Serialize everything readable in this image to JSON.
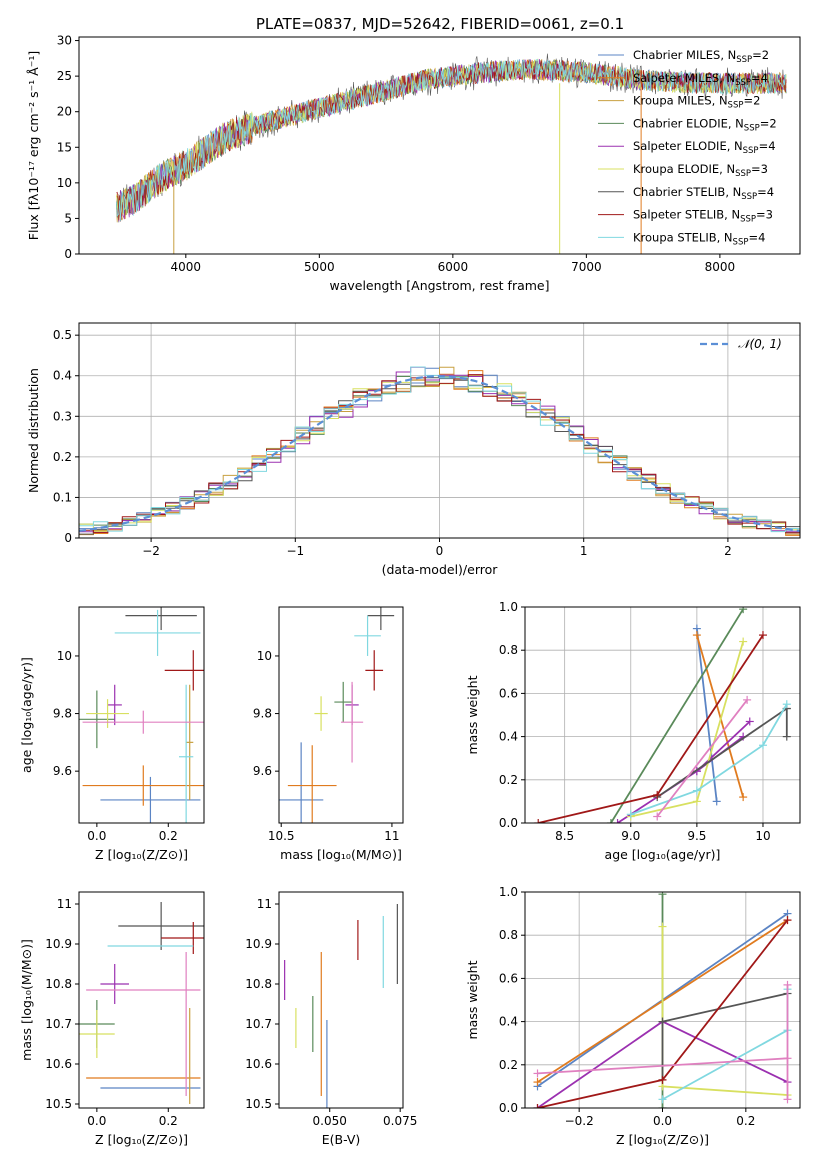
{
  "figure": {
    "title": "PLATE=0837, MJD=52642, FIBERID=0061, z=0.1"
  },
  "models": [
    {
      "name": "Chabrier MILES, N",
      "sub": "SSP",
      "tail": "=2",
      "color": "#5b84c4"
    },
    {
      "name": "Salpeter MILES, N",
      "sub": "SSP",
      "tail": "=4",
      "color": "#e07b1f"
    },
    {
      "name": "Kroupa MILES, N",
      "sub": "SSP",
      "tail": "=2",
      "color": "#c8a040"
    },
    {
      "name": "Chabrier ELODIE, N",
      "sub": "SSP",
      "tail": "=2",
      "color": "#5a8a5a"
    },
    {
      "name": "Salpeter ELODIE, N",
      "sub": "SSP",
      "tail": "=4",
      "color": "#9b30b0"
    },
    {
      "name": "Kroupa ELODIE, N",
      "sub": "SSP",
      "tail": "=3",
      "color": "#d8e060"
    },
    {
      "name": "Chabrier STELIB, N",
      "sub": "SSP",
      "tail": "=4",
      "color": "#555555"
    },
    {
      "name": "Salpeter STELIB, N",
      "sub": "SSP",
      "tail": "=3",
      "color": "#a01818"
    },
    {
      "name": "Kroupa STELIB, N",
      "sub": "SSP",
      "tail": "=4",
      "color": "#80d8e0"
    }
  ],
  "chart_data": [
    {
      "id": "spectrum",
      "type": "line",
      "xlabel": "wavelength [Angstrom, rest frame]",
      "ylabel": "Flux [fλ10⁻¹⁷ erg cm⁻² s⁻¹ Å⁻¹]",
      "xlim": [
        3200,
        8600
      ],
      "ylim": [
        0,
        30.5
      ],
      "xticks": [
        4000,
        5000,
        6000,
        7000,
        8000
      ],
      "yticks": [
        0,
        5,
        10,
        15,
        20,
        25,
        30
      ],
      "grid": false,
      "legend": "right",
      "continuum": {
        "x": [
          3480,
          3600,
          3800,
          4000,
          4300,
          4600,
          5000,
          5400,
          5800,
          6200,
          6600,
          7000,
          7400,
          7800,
          8200,
          8500
        ],
        "y": [
          6.5,
          7.5,
          10.5,
          12.5,
          16.5,
          18.5,
          20.5,
          22.5,
          24.5,
          25.5,
          26.0,
          25.5,
          24.5,
          24.0,
          24.0,
          24.0
        ]
      }
    },
    {
      "id": "residuals",
      "type": "step",
      "xlabel": "(data-model)/error",
      "ylabel": "Normed distribution",
      "xlim": [
        -2.5,
        2.5
      ],
      "ylim": [
        0,
        0.53
      ],
      "xticks": [
        -2,
        -1,
        0,
        1,
        2
      ],
      "yticks": [
        0.0,
        0.1,
        0.2,
        0.3,
        0.4,
        0.5
      ],
      "grid": true,
      "legend": "top-right",
      "reference": {
        "name": "𝒩(0, 1)",
        "type": "gaussian",
        "mean": 0,
        "sigma": 1,
        "color": "#5b8fd6"
      }
    },
    {
      "id": "age-vs-Z",
      "type": "errorbar",
      "xlabel": "Z [log₁₀(Z/Z⊙)]",
      "ylabel": "age  [log₁₀(age/yr)]",
      "xlim": [
        -0.05,
        0.3
      ],
      "ylim": [
        9.42,
        10.17
      ],
      "xticks": [
        0.0,
        0.2
      ],
      "yticks": [
        9.6,
        9.8,
        10.0
      ],
      "grid": false,
      "points": [
        {
          "x": 0.15,
          "y": 9.5,
          "xerr": 0.14,
          "yerr": 0.08,
          "c": 0
        },
        {
          "x": 0.13,
          "y": 9.55,
          "xerr": 0.17,
          "yerr": 0.07,
          "c": 1
        },
        {
          "x": 0.26,
          "y": 9.7,
          "xerr": 0.01,
          "yerr": 0.2,
          "c": 2
        },
        {
          "x": 0.0,
          "y": 9.78,
          "xerr": 0.05,
          "yerr": 0.1,
          "c": 3
        },
        {
          "x": 0.05,
          "y": 9.83,
          "xerr": 0.02,
          "yerr": 0.07,
          "c": 4
        },
        {
          "x": 0.03,
          "y": 9.8,
          "xerr": 0.06,
          "yerr": 0.05,
          "c": 5
        },
        {
          "x": 0.18,
          "y": 10.14,
          "xerr": 0.1,
          "yerr": 0.05,
          "c": 6
        },
        {
          "x": 0.27,
          "y": 9.95,
          "xerr": 0.08,
          "yerr": 0.07,
          "c": 7
        },
        {
          "x": 0.17,
          "y": 10.08,
          "xerr": 0.12,
          "yerr": 0.08,
          "c": 8
        },
        {
          "x": 0.25,
          "y": 9.65,
          "xerr": 0.02,
          "yerr": 0.25,
          "c": 8
        },
        {
          "x": 0.13,
          "y": 9.77,
          "xerr": 0.17,
          "yerr": 0.04,
          "c": 0,
          "pink": true
        }
      ]
    },
    {
      "id": "age-vs-mass",
      "type": "errorbar",
      "xlabel": "mass [log₁₀(M/M⊙)]",
      "ylabel": "",
      "xlim": [
        10.49,
        11.05
      ],
      "ylim": [
        9.42,
        10.17
      ],
      "xticks": [
        10.5,
        11.0
      ],
      "yticks": [
        9.6,
        9.8,
        10.0
      ],
      "grid": false,
      "points": [
        {
          "x": 10.59,
          "y": 9.5,
          "xerr": 0.1,
          "yerr": 0.2,
          "c": 0
        },
        {
          "x": 10.64,
          "y": 9.55,
          "xerr": 0.11,
          "yerr": 0.14,
          "c": 1
        },
        {
          "x": 10.68,
          "y": 9.8,
          "xerr": 0.03,
          "yerr": 0.06,
          "c": 5
        },
        {
          "x": 10.78,
          "y": 9.84,
          "xerr": 0.04,
          "yerr": 0.07,
          "c": 3
        },
        {
          "x": 10.82,
          "y": 9.83,
          "xerr": 0.03,
          "yerr": 0.07,
          "c": 4
        },
        {
          "x": 10.82,
          "y": 9.77,
          "xerr": 0.05,
          "yerr": 0.14,
          "c": 2,
          "pink": true
        },
        {
          "x": 10.95,
          "y": 10.14,
          "xerr": 0.06,
          "yerr": 0.05,
          "c": 6
        },
        {
          "x": 10.92,
          "y": 9.95,
          "xerr": 0.04,
          "yerr": 0.07,
          "c": 7
        },
        {
          "x": 10.89,
          "y": 10.07,
          "xerr": 0.06,
          "yerr": 0.07,
          "c": 8
        }
      ]
    },
    {
      "id": "weight-vs-age",
      "type": "line",
      "xlabel": "age  [log₁₀(age/yr)]",
      "ylabel": "mass weight",
      "xlim": [
        8.2,
        10.28
      ],
      "ylim": [
        0,
        1.0
      ],
      "xticks": [
        8.5,
        9.0,
        9.5,
        10.0
      ],
      "yticks": [
        0.0,
        0.2,
        0.4,
        0.6,
        0.8,
        1.0
      ],
      "grid": true,
      "series": [
        {
          "c": 0,
          "x": [
            9.5,
            9.65
          ],
          "y": [
            0.9,
            0.1
          ]
        },
        {
          "c": 1,
          "x": [
            9.5,
            9.85
          ],
          "y": [
            0.87,
            0.12
          ]
        },
        {
          "c": 3,
          "x": [
            8.85,
            9.85
          ],
          "y": [
            0.0,
            0.99
          ]
        },
        {
          "c": 4,
          "x": [
            8.9,
            9.5,
            9.9
          ],
          "y": [
            0.0,
            0.24,
            0.47
          ]
        },
        {
          "c": 4,
          "x": [
            9.5,
            9.85
          ],
          "y": [
            0.24,
            0.4
          ]
        },
        {
          "c": 5,
          "x": [
            9.0,
            9.5,
            9.85
          ],
          "y": [
            0.03,
            0.1,
            0.84
          ]
        },
        {
          "c": 6,
          "x": [
            9.2,
            10.18
          ],
          "y": [
            0.12,
            0.53
          ]
        },
        {
          "c": 6,
          "x": [
            10.18,
            10.18
          ],
          "y": [
            0.53,
            0.4
          ]
        },
        {
          "c": 7,
          "x": [
            8.3,
            9.2,
            10.0
          ],
          "y": [
            0.0,
            0.13,
            0.87
          ]
        },
        {
          "c": 8,
          "x": [
            9.0,
            9.5,
            10.0,
            10.18
          ],
          "y": [
            0.04,
            0.15,
            0.36,
            0.55
          ]
        },
        {
          "c": 8,
          "x": [
            9.2,
            9.88
          ],
          "y": [
            0.03,
            0.57
          ],
          "pink": true
        }
      ]
    },
    {
      "id": "mass-vs-Z",
      "type": "errorbar",
      "xlabel": "Z [log₁₀(Z/Z⊙)]",
      "ylabel": "mass [log₁₀(M/M⊙)]",
      "xlim": [
        -0.05,
        0.3
      ],
      "ylim": [
        10.49,
        11.03
      ],
      "xticks": [
        0.0,
        0.2
      ],
      "yticks": [
        10.5,
        10.6,
        10.7,
        10.8,
        10.9,
        11.0
      ],
      "grid": false,
      "points": [
        {
          "x": 0.15,
          "y": 10.54,
          "xerr": 0.14,
          "yerr": 0.0,
          "c": 0
        },
        {
          "x": 0.13,
          "y": 10.565,
          "xerr": 0.16,
          "yerr": 0.0,
          "c": 1
        },
        {
          "x": 0.26,
          "y": 10.62,
          "xerr": 0.0,
          "yerr": 0.12,
          "c": 2
        },
        {
          "x": 0.0,
          "y": 10.7,
          "xerr": 0.05,
          "yerr": 0.06,
          "c": 3
        },
        {
          "x": 0.05,
          "y": 10.8,
          "xerr": 0.04,
          "yerr": 0.05,
          "c": 4
        },
        {
          "x": 0.0,
          "y": 10.675,
          "xerr": 0.05,
          "yerr": 0.06,
          "c": 5
        },
        {
          "x": 0.18,
          "y": 10.945,
          "xerr": 0.12,
          "yerr": 0.06,
          "c": 6
        },
        {
          "x": 0.27,
          "y": 10.915,
          "xerr": 0.09,
          "yerr": 0.04,
          "c": 7
        },
        {
          "x": 0.15,
          "y": 10.895,
          "xerr": 0.12,
          "yerr": 0.0,
          "c": 8
        },
        {
          "x": 0.13,
          "y": 10.785,
          "xerr": 0.16,
          "yerr": 0.0,
          "c": 2,
          "pink": true
        },
        {
          "x": 0.25,
          "y": 10.7,
          "xerr": 0.0,
          "yerr": 0.18,
          "c": 2,
          "pink": true
        }
      ]
    },
    {
      "id": "mass-vs-ebv",
      "type": "errorbar",
      "xlabel": "E(B-V)",
      "ylabel": "",
      "xlim": [
        0.032,
        0.076
      ],
      "ylim": [
        10.49,
        11.03
      ],
      "xticks": [
        0.05,
        0.075
      ],
      "yticks": [
        10.5,
        10.6,
        10.7,
        10.8,
        10.9,
        11.0
      ],
      "grid": false,
      "points": [
        {
          "x": 0.034,
          "y": 10.81,
          "xerr": 0.0,
          "yerr": 0.05,
          "c": 4
        },
        {
          "x": 0.038,
          "y": 10.69,
          "xerr": 0.0,
          "yerr": 0.05,
          "c": 5
        },
        {
          "x": 0.044,
          "y": 10.7,
          "xerr": 0.0,
          "yerr": 0.07,
          "c": 3
        },
        {
          "x": 0.047,
          "y": 10.7,
          "xerr": 0.0,
          "yerr": 0.18,
          "c": 1
        },
        {
          "x": 0.049,
          "y": 10.6,
          "xerr": 0.0,
          "yerr": 0.11,
          "c": 0
        },
        {
          "x": 0.06,
          "y": 10.91,
          "xerr": 0.0,
          "yerr": 0.05,
          "c": 7
        },
        {
          "x": 0.069,
          "y": 10.88,
          "xerr": 0.0,
          "yerr": 0.09,
          "c": 8
        },
        {
          "x": 0.074,
          "y": 10.9,
          "xerr": 0.0,
          "yerr": 0.1,
          "c": 6
        }
      ]
    },
    {
      "id": "weight-vs-Z",
      "type": "line",
      "xlabel": "Z [log₁₀(Z/Z⊙)]",
      "ylabel": "mass weight",
      "xlim": [
        -0.33,
        0.33
      ],
      "ylim": [
        0,
        1.0
      ],
      "xticks": [
        -0.2,
        0.0,
        0.2
      ],
      "yticks": [
        0.0,
        0.2,
        0.4,
        0.6,
        0.8,
        1.0
      ],
      "grid": true,
      "series": [
        {
          "c": 0,
          "x": [
            -0.3,
            0.3
          ],
          "y": [
            0.1,
            0.9
          ]
        },
        {
          "c": 1,
          "x": [
            -0.3,
            0.3
          ],
          "y": [
            0.12,
            0.87
          ]
        },
        {
          "c": 3,
          "x": [
            0.0,
            0.0
          ],
          "y": [
            0.0,
            0.99
          ]
        },
        {
          "c": 4,
          "x": [
            -0.3,
            0.0,
            0.3
          ],
          "y": [
            0.0,
            0.4,
            0.12
          ]
        },
        {
          "c": 5,
          "x": [
            0.0,
            0.0,
            0.3
          ],
          "y": [
            0.84,
            0.1,
            0.06
          ]
        },
        {
          "c": 6,
          "x": [
            0.0,
            0.3
          ],
          "y": [
            0.4,
            0.53
          ]
        },
        {
          "c": 6,
          "x": [
            0.0,
            0.0
          ],
          "y": [
            0.13,
            0.4
          ]
        },
        {
          "c": 7,
          "x": [
            -0.3,
            0.0,
            0.3
          ],
          "y": [
            0.0,
            0.13,
            0.87
          ]
        },
        {
          "c": 8,
          "x": [
            0.0,
            0.3,
            0.3
          ],
          "y": [
            0.04,
            0.36,
            0.55
          ]
        },
        {
          "c": 8,
          "x": [
            -0.3,
            0.3
          ],
          "y": [
            0.16,
            0.23
          ],
          "pink": true
        },
        {
          "c": 8,
          "x": [
            0.3,
            0.3
          ],
          "y": [
            0.04,
            0.57
          ],
          "pink": true
        }
      ]
    }
  ]
}
